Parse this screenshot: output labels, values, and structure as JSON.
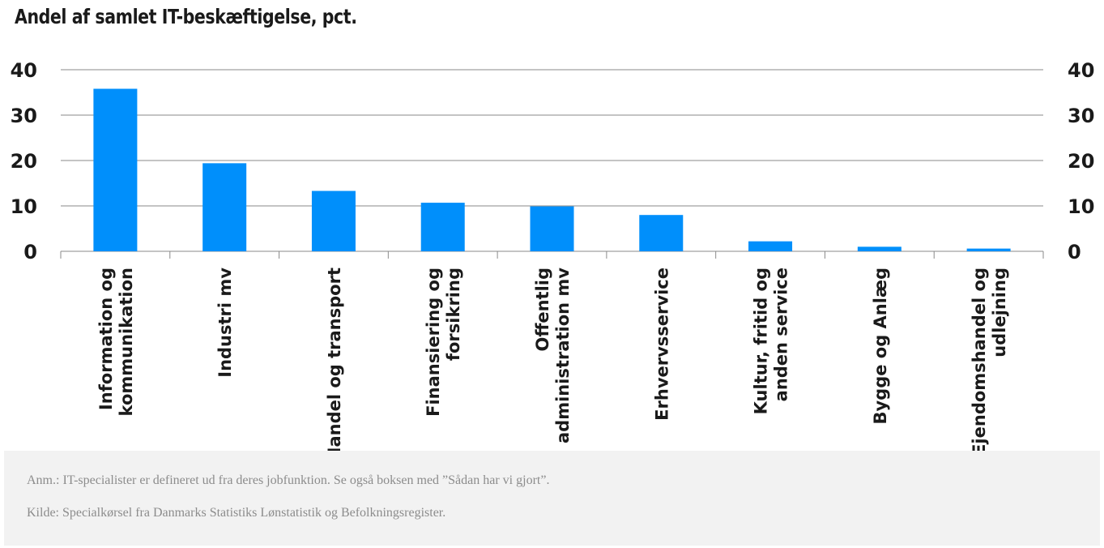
{
  "chart_data": {
    "type": "bar",
    "title": "Andel af samlet IT-beskæftigelse, pct.",
    "categories": [
      [
        "Information og",
        "kommunikation"
      ],
      [
        "Industri mv"
      ],
      [
        "Handel og transport"
      ],
      [
        "Finansiering og",
        "forsikring"
      ],
      [
        "Offentlig",
        "administration mv"
      ],
      [
        "Erhvervsservice"
      ],
      [
        "Kultur, fritid og",
        "anden service"
      ],
      [
        "Bygge og Anlæg"
      ],
      [
        "Ejendomshandel og",
        "udlejning"
      ]
    ],
    "values": [
      35.8,
      19.4,
      13.3,
      10.7,
      9.9,
      8.0,
      2.2,
      1.0,
      0.6
    ],
    "ylim": [
      0,
      40
    ],
    "yticks": [
      "0",
      "10",
      "20",
      "30",
      "40"
    ],
    "secondary_axis": true,
    "grid": true,
    "bar_color": "#008ffb"
  },
  "notes": {
    "anm": "Anm.: IT-specialister er defineret ud fra deres jobfunktion. Se også boksen med ”Sådan har vi gjort”.",
    "kilde": "Kilde: Specialkørsel fra Danmarks Statistiks Lønstatistik og Befolkningsregister."
  }
}
